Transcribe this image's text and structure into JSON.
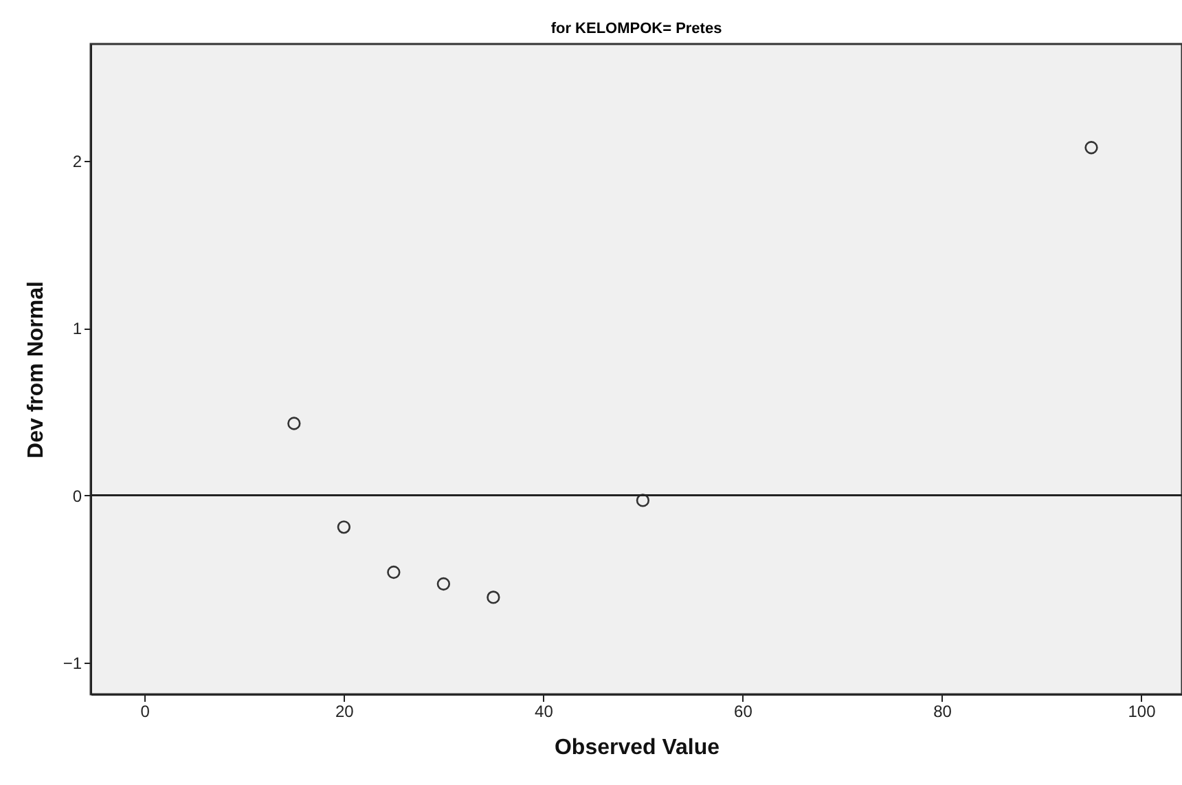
{
  "chart_data": {
    "type": "scatter",
    "title": "for KELOMPOK= Pretes",
    "xlabel": "Observed Value",
    "ylabel": "Dev from Normal",
    "x": [
      15,
      20,
      25,
      30,
      35,
      50,
      95
    ],
    "values": [
      0.43,
      -0.19,
      -0.46,
      -0.53,
      -0.61,
      -0.03,
      2.08
    ],
    "color": "#333333",
    "marker": "circle",
    "xlim": [
      -5.4,
      104.1
    ],
    "xticks": [
      0,
      20,
      40,
      60,
      80,
      100
    ],
    "ylim": [
      -1.19,
      2.7
    ],
    "yticks": [
      -1,
      0,
      1,
      2
    ],
    "ref_lines": [
      {
        "axis": "y",
        "value": 0,
        "color": "#222222",
        "line_style": "solid"
      }
    ],
    "grid": false
  }
}
